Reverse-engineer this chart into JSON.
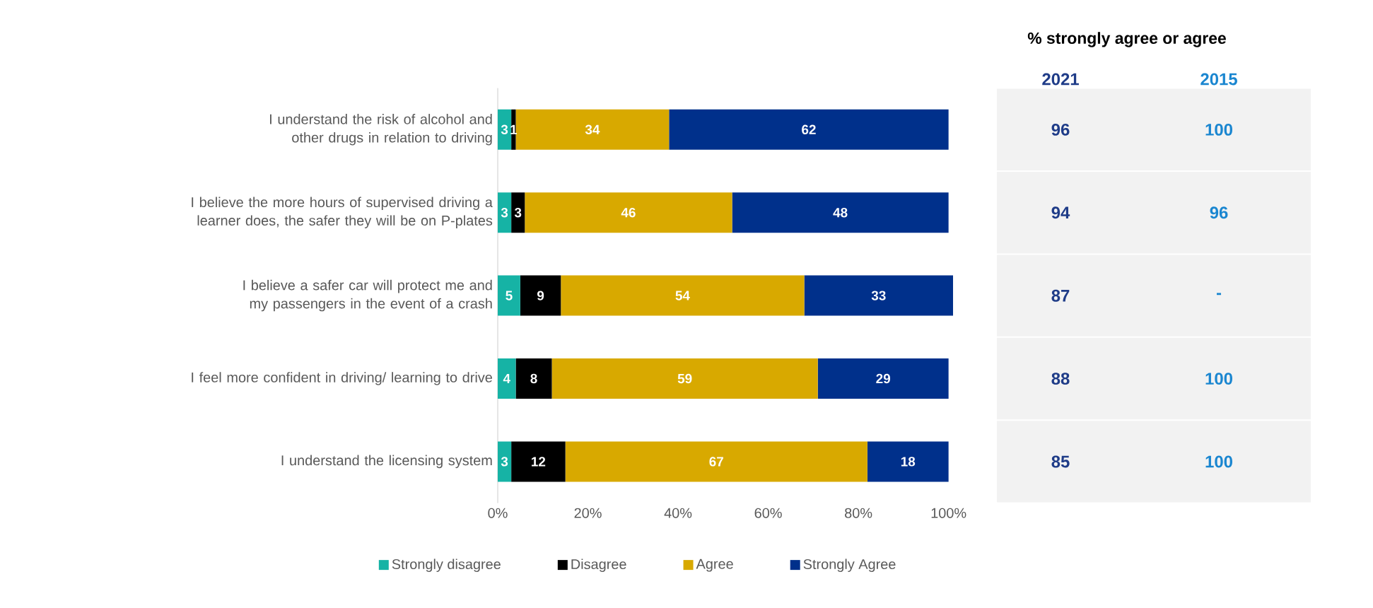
{
  "chart_data": [
    {
      "type": "bar",
      "orientation": "horizontal",
      "stacked": true,
      "categories": [
        "I understand the risk of alcohol and other drugs in relation to driving",
        "I believe the more hours of supervised driving a learner does, the safer they will be on P-plates",
        "I believe a safer car will protect me and my passengers in the event of a crash",
        "I feel more confident in driving/ learning to drive",
        "I understand the licensing system"
      ],
      "series": [
        {
          "name": "Strongly disagree",
          "color": "#16b3a5",
          "values": [
            3,
            3,
            5,
            4,
            3
          ]
        },
        {
          "name": "Disagree",
          "color": "#000000",
          "values": [
            1,
            3,
            9,
            8,
            12
          ]
        },
        {
          "name": "Agree",
          "color": "#d8a900",
          "values": [
            34,
            46,
            54,
            59,
            67
          ]
        },
        {
          "name": "Strongly Agree",
          "color": "#00308b",
          "values": [
            62,
            48,
            33,
            29,
            18
          ]
        }
      ],
      "xlim": [
        0,
        101
      ],
      "xticks": [
        {
          "value": 0,
          "label": "0%"
        },
        {
          "value": 20,
          "label": "20%"
        },
        {
          "value": 40,
          "label": "40%"
        },
        {
          "value": 60,
          "label": "60%"
        },
        {
          "value": 80,
          "label": "80%"
        },
        {
          "value": 100,
          "label": "100%"
        }
      ],
      "data_labels": true,
      "legend": "bottom"
    },
    {
      "type": "other",
      "title": "% strongly agree or agree",
      "categories": [
        "2021",
        "2015"
      ],
      "colors": [
        "#1f3c88",
        "#1a86d0"
      ],
      "cell_labels": [
        [
          "96",
          "100"
        ],
        [
          "94",
          "96"
        ],
        [
          "87",
          "-"
        ],
        [
          "88",
          "100"
        ],
        [
          "85",
          "100"
        ]
      ]
    }
  ]
}
